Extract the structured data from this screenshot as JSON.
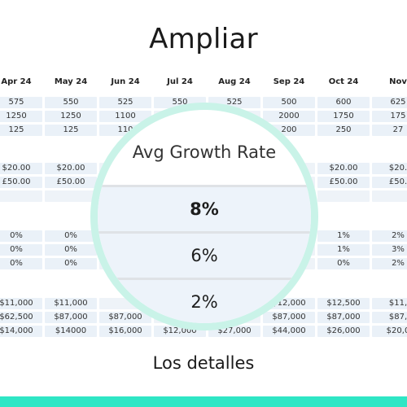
{
  "title": "Ampliar",
  "footer_title": "Los detalles",
  "sheet": {
    "columns": [
      "Apr 24",
      "May 24",
      "Jun 24",
      "Jul 24",
      "Aug 24",
      "Sep 24",
      "Oct 24",
      "Nov"
    ],
    "rows": [
      [
        "575",
        "550",
        "525",
        "550",
        "525",
        "500",
        "600",
        "625"
      ],
      [
        "1250",
        "1250",
        "1100",
        "",
        "",
        "2000",
        "1750",
        "175"
      ],
      [
        "125",
        "125",
        "110",
        "",
        "",
        "200",
        "250",
        "27"
      ],
      [
        "$20.00",
        "$20.00",
        "",
        "",
        "",
        "",
        "$20.00",
        "$20."
      ],
      [
        "£50.00",
        "£50.00",
        "",
        "",
        "",
        "",
        "£50.00",
        "£50."
      ],
      [
        "",
        "",
        "",
        "",
        "",
        "",
        "",
        ""
      ],
      [
        "0%",
        "0%",
        "",
        "",
        "",
        "",
        "1%",
        "2%"
      ],
      [
        "0%",
        "0%",
        "",
        "",
        "",
        "",
        "1%",
        "3%"
      ],
      [
        "0%",
        "0%",
        "",
        "",
        "",
        "",
        "0%",
        "2%"
      ],
      [
        "$11,000",
        "$11,000",
        "",
        "",
        "",
        "$12,000",
        "$12,500",
        "$11,"
      ],
      [
        "$62,500",
        "$87,000",
        "$87,000",
        "",
        "",
        "$87,000",
        "$87,000",
        "$87,"
      ],
      [
        "$14,000",
        "$14000",
        "$16,000",
        "$12,000",
        "$27,000",
        "$44,000",
        "$26,000",
        "$20,0"
      ]
    ]
  },
  "magnifier": {
    "heading": "Avg Growth Rate",
    "values": [
      "8%",
      "6%",
      "2%"
    ]
  },
  "colors": {
    "accent": "#2fe6c5",
    "ring": "#c9f3e8",
    "cell_bg": "#eaf1f8"
  }
}
